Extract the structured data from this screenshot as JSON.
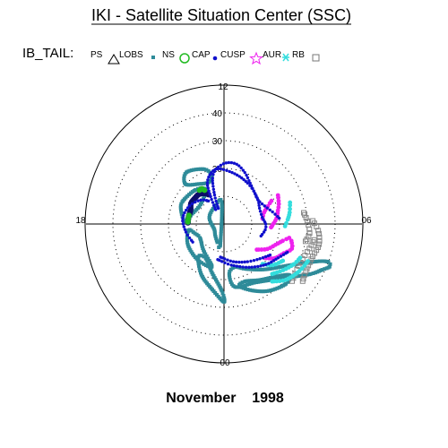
{
  "chart_data": {
    "type": "scatter",
    "title": "IKI - Satellite Situation Center (SSC)",
    "subtitle": "November    1998",
    "legend_title": "IB_TAIL:",
    "legend_position": "top",
    "legend": [
      {
        "label": "PS",
        "marker": "triangle-open",
        "color": "#000000"
      },
      {
        "label": "LOBS",
        "marker": "square-small",
        "color": "#2e8b99"
      },
      {
        "label": "NS",
        "marker": "circle-open",
        "color": "#22bb22"
      },
      {
        "label": "CAP",
        "marker": "dot",
        "color": "#1010cc"
      },
      {
        "label": "CUSP",
        "marker": "star",
        "color": "#ee22ee"
      },
      {
        "label": "AUR",
        "marker": "asterisk",
        "color": "#33dddd"
      },
      {
        "label": "RB",
        "marker": "square-open",
        "color": "#888888"
      }
    ],
    "polar": {
      "hour_labels": {
        "top": "12",
        "bottom": "00",
        "left": "18",
        "right": "06"
      },
      "radial_labels": [
        "40",
        "30",
        "20"
      ],
      "rmax": 50,
      "circles_dotted": [
        10,
        20,
        30,
        40
      ],
      "grid": true
    },
    "tracks": [
      {
        "class": "LOBS",
        "color": "#2e8b99",
        "shape": "loop",
        "points": [
          [
            24,
            -61
          ],
          [
            30,
            -40
          ],
          [
            36,
            -30
          ],
          [
            39,
            -25
          ],
          [
            41,
            -22
          ],
          [
            40,
            -20
          ],
          [
            36,
            -22
          ],
          [
            28,
            -32
          ],
          [
            22,
            -48
          ],
          [
            18,
            -64
          ],
          [
            16,
            -76
          ],
          [
            18,
            -84
          ],
          [
            23,
            -80
          ],
          [
            24,
            -61
          ]
        ]
      },
      {
        "class": "LOBS",
        "color": "#2e8b99",
        "shape": "loop",
        "points": [
          [
            26,
            -67
          ],
          [
            29,
            -56
          ],
          [
            31,
            -44
          ],
          [
            30,
            -38
          ],
          [
            27,
            -44
          ],
          [
            24,
            -57
          ],
          [
            22,
            -70
          ],
          [
            23,
            -76
          ],
          [
            26,
            -67
          ]
        ]
      },
      {
        "class": "LOBS",
        "color": "#2e8b99",
        "shape": "loop",
        "points": [
          [
            28,
            -90
          ],
          [
            24,
            -100
          ],
          [
            20,
            -114
          ],
          [
            15,
            -128
          ],
          [
            14,
            -118
          ],
          [
            18,
            -104
          ],
          [
            24,
            -92
          ],
          [
            28,
            -90
          ]
        ]
      },
      {
        "class": "LOBS",
        "color": "#2e8b99",
        "shape": "loop",
        "points": [
          [
            16,
            -106
          ],
          [
            12,
            -128
          ],
          [
            10,
            -150
          ],
          [
            11,
            -162
          ],
          [
            13,
            -170
          ],
          [
            15,
            -150
          ],
          [
            16,
            -126
          ],
          [
            16,
            -106
          ]
        ]
      },
      {
        "class": "LOBS",
        "color": "#2e8b99",
        "shape": "loop",
        "points": [
          [
            14,
            118
          ],
          [
            16,
            130
          ],
          [
            17,
            152
          ],
          [
            16,
            164
          ],
          [
            14,
            176
          ],
          [
            12,
            162
          ],
          [
            11,
            140
          ],
          [
            14,
            118
          ]
        ]
      },
      {
        "class": "LOBS",
        "color": "#2e8b99",
        "shape": "loop",
        "points": [
          [
            18,
            104
          ],
          [
            21,
            110
          ],
          [
            23,
            126
          ],
          [
            20,
            134
          ],
          [
            17,
            122
          ],
          [
            16,
            110
          ],
          [
            18,
            104
          ]
        ]
      },
      {
        "class": "LOBS",
        "color": "#2e8b99",
        "shape": "loop",
        "points": [
          [
            8,
            96
          ],
          [
            7,
            120
          ],
          [
            6,
            150
          ],
          [
            5,
            170
          ],
          [
            4,
            -150
          ],
          [
            5,
            -130
          ],
          [
            7,
            -110
          ],
          [
            8,
            -100
          ],
          [
            8,
            96
          ]
        ]
      },
      {
        "class": "CAP",
        "color": "#1010cc",
        "shape": "path",
        "points": [
          [
            6,
            110
          ],
          [
            11,
            108
          ],
          [
            17,
            104
          ],
          [
            20,
            98
          ],
          [
            22,
            88
          ],
          [
            22,
            78
          ],
          [
            20,
            68
          ],
          [
            18,
            60
          ],
          [
            16,
            48
          ],
          [
            15,
            35
          ],
          [
            14,
            24
          ],
          [
            14,
            10
          ],
          [
            15,
            0
          ],
          [
            15,
            -8
          ],
          [
            14,
            -18
          ]
        ]
      },
      {
        "class": "CAP",
        "color": "#1010cc",
        "shape": "path",
        "points": [
          [
            6,
            120
          ],
          [
            11,
            116
          ],
          [
            16,
            112
          ],
          [
            19,
            104
          ],
          [
            20,
            96
          ],
          [
            19,
            84
          ],
          [
            18,
            72
          ],
          [
            17,
            60
          ],
          [
            16,
            48
          ],
          [
            15,
            36
          ],
          [
            16,
            24
          ],
          [
            18,
            14
          ],
          [
            20,
            6
          ]
        ]
      },
      {
        "class": "CAP",
        "color": "#1010cc",
        "shape": "path",
        "points": [
          [
            13,
            -100
          ],
          [
            15,
            -80
          ],
          [
            18,
            -60
          ],
          [
            21,
            -44
          ],
          [
            23,
            -32
          ],
          [
            25,
            -24
          ]
        ]
      },
      {
        "class": "CAP",
        "color": "#1010cc",
        "shape": "path",
        "points": [
          [
            12,
            -96
          ],
          [
            14,
            -76
          ],
          [
            16,
            -58
          ],
          [
            18,
            -44
          ],
          [
            20,
            -34
          ]
        ]
      },
      {
        "class": "CAP",
        "color": "#1010cc",
        "shape": "path",
        "points": [
          [
            13,
            -150
          ],
          [
            14,
            -168
          ],
          [
            15,
            172
          ],
          [
            14,
            152
          ],
          [
            12,
            134
          ],
          [
            10,
            124
          ]
        ]
      },
      {
        "class": "CUSP",
        "color": "#ee22ee",
        "shape": "path",
        "points": [
          [
            19,
            -40
          ],
          [
            22,
            -34
          ],
          [
            24,
            -26
          ],
          [
            26,
            -20
          ],
          [
            25,
            -14
          ]
        ]
      },
      {
        "class": "CUSP",
        "color": "#ee22ee",
        "shape": "path",
        "points": [
          [
            15,
            -38
          ],
          [
            18,
            -30
          ],
          [
            20,
            -22
          ],
          [
            22,
            -16
          ],
          [
            24,
            -12
          ]
        ]
      },
      {
        "class": "CUSP",
        "color": "#ee22ee",
        "shape": "path",
        "points": [
          [
            17,
            -4
          ],
          [
            19,
            6
          ],
          [
            20,
            14
          ],
          [
            21,
            20
          ],
          [
            22,
            28
          ]
        ]
      },
      {
        "class": "CUSP",
        "color": "#ee22ee",
        "shape": "path",
        "points": [
          [
            14,
            8
          ],
          [
            15,
            16
          ],
          [
            17,
            22
          ],
          [
            19,
            26
          ]
        ]
      },
      {
        "class": "AUR",
        "color": "#33dddd",
        "shape": "path",
        "points": [
          [
            25,
            -46
          ],
          [
            27,
            -38
          ],
          [
            29,
            -30
          ],
          [
            30,
            -24
          ]
        ]
      },
      {
        "class": "AUR",
        "color": "#33dddd",
        "shape": "path",
        "points": [
          [
            27,
            -50
          ],
          [
            30,
            -42
          ],
          [
            32,
            -32
          ],
          [
            33,
            -24
          ]
        ]
      },
      {
        "class": "AUR",
        "color": "#33dddd",
        "shape": "path",
        "points": [
          [
            20,
            -46
          ],
          [
            23,
            -40
          ],
          [
            25,
            -32
          ]
        ]
      },
      {
        "class": "AUR",
        "color": "#33dddd",
        "shape": "path",
        "points": [
          [
            22,
            -2
          ],
          [
            23,
            4
          ],
          [
            24,
            10
          ],
          [
            25,
            18
          ]
        ]
      },
      {
        "class": "RB",
        "color": "#888888",
        "shape": "path",
        "points": [
          [
            35,
            -36
          ],
          [
            34,
            -30
          ],
          [
            34,
            -20
          ],
          [
            35,
            -12
          ],
          [
            34,
            -4
          ],
          [
            32,
            2
          ]
        ]
      },
      {
        "class": "RB",
        "color": "#888888",
        "shape": "path",
        "points": [
          [
            32,
            -40
          ],
          [
            31,
            -32
          ],
          [
            31,
            -24
          ],
          [
            32,
            -16
          ],
          [
            33,
            -10
          ]
        ]
      },
      {
        "class": "RB",
        "color": "#888888",
        "shape": "path",
        "points": [
          [
            30,
            -12
          ],
          [
            31,
            -6
          ],
          [
            30,
            2
          ],
          [
            29,
            8
          ]
        ]
      },
      {
        "class": "PS",
        "color": "#0c0c6a",
        "shape": "band",
        "points": [
          [
            13,
            178
          ],
          [
            13,
            168
          ],
          [
            13,
            158
          ],
          [
            14,
            148
          ],
          [
            14,
            138
          ],
          [
            14,
            130
          ],
          [
            13,
            122
          ],
          [
            12,
            118
          ]
        ]
      },
      {
        "class": "NS",
        "color": "#22bb22",
        "shape": "dots",
        "points": [
          [
            13,
            177
          ],
          [
            13,
            174
          ],
          [
            13,
            170
          ],
          [
            13,
            166
          ],
          [
            15,
            126
          ],
          [
            15,
            124
          ],
          [
            15,
            122
          ],
          [
            14,
            120
          ]
        ]
      }
    ]
  }
}
